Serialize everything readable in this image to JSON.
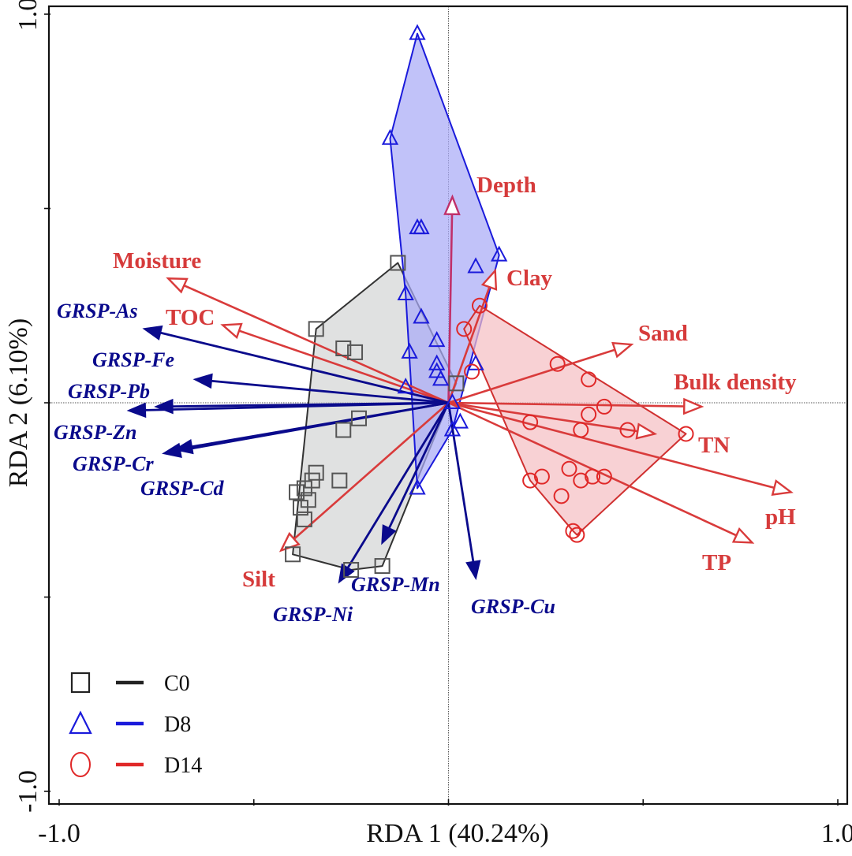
{
  "chart_data": {
    "type": "scatter",
    "subtype": "RDA biplot",
    "title": "",
    "xlabel": "RDA 1 (40.24%)",
    "ylabel": "RDA 2 (6.10%)",
    "xlim": [
      -1.0,
      1.0
    ],
    "ylim": [
      -1.0,
      1.0
    ],
    "x_tick_labels": [
      {
        "value": -1.0,
        "label": "-1.0"
      },
      {
        "value": -0.5,
        "label": ""
      },
      {
        "value": 0.0,
        "label": ""
      },
      {
        "value": 0.5,
        "label": ""
      },
      {
        "value": 1.0,
        "label": "1.0"
      }
    ],
    "y_tick_labels": [
      {
        "value": 1.0,
        "label": "1.0"
      },
      {
        "value": 0.5,
        "label": ""
      },
      {
        "value": 0.0,
        "label": ""
      },
      {
        "value": -0.5,
        "label": ""
      },
      {
        "value": -1.0,
        "label": "-1.0"
      }
    ],
    "reference_lines": {
      "x": 0,
      "y": 0,
      "style": "dotted"
    },
    "legend": {
      "position": "bottom-left",
      "entries": [
        {
          "name": "C0",
          "marker": "square",
          "color": "#222222"
        },
        {
          "name": "D8",
          "marker": "triangle",
          "color": "#1a1adb"
        },
        {
          "name": "D14",
          "marker": "circle",
          "color": "#e02828"
        }
      ]
    },
    "groups": [
      {
        "name": "C0",
        "marker": "square",
        "stroke": "#555555",
        "fill": "#d4d5d6",
        "hull_stroke": "#333333",
        "points": [
          [
            -0.13,
            0.36
          ],
          [
            -0.34,
            0.19
          ],
          [
            -0.27,
            0.14
          ],
          [
            -0.24,
            0.13
          ],
          [
            0.02,
            0.05
          ],
          [
            -0.23,
            -0.04
          ],
          [
            -0.27,
            -0.07
          ],
          [
            -0.34,
            -0.18
          ],
          [
            -0.28,
            -0.2
          ],
          [
            -0.35,
            -0.2
          ],
          [
            -0.37,
            -0.22
          ],
          [
            -0.39,
            -0.23
          ],
          [
            -0.36,
            -0.25
          ],
          [
            -0.37,
            -0.3
          ],
          [
            -0.38,
            -0.27
          ],
          [
            -0.4,
            -0.39
          ],
          [
            -0.25,
            -0.43
          ],
          [
            -0.17,
            -0.42
          ]
        ],
        "hull": [
          [
            -0.13,
            0.36
          ],
          [
            -0.34,
            0.19
          ],
          [
            -0.4,
            -0.39
          ],
          [
            -0.25,
            -0.43
          ],
          [
            -0.17,
            -0.42
          ],
          [
            0.02,
            0.05
          ]
        ]
      },
      {
        "name": "D8",
        "marker": "triangle",
        "stroke": "#1a1adb",
        "fill": "#a9aaf6",
        "hull_stroke": "#1a1adb",
        "points": [
          [
            -0.08,
            0.95
          ],
          [
            -0.15,
            0.68
          ],
          [
            -0.08,
            0.45
          ],
          [
            -0.07,
            0.45
          ],
          [
            0.13,
            0.38
          ],
          [
            0.07,
            0.35
          ],
          [
            -0.11,
            0.28
          ],
          [
            -0.07,
            0.22
          ],
          [
            -0.03,
            0.16
          ],
          [
            -0.1,
            0.13
          ],
          [
            -0.03,
            0.1
          ],
          [
            -0.03,
            0.08
          ],
          [
            -0.02,
            0.06
          ],
          [
            0.07,
            0.1
          ],
          [
            -0.11,
            0.04
          ],
          [
            0.01,
            0.0
          ],
          [
            0.03,
            -0.05
          ],
          [
            0.01,
            -0.07
          ],
          [
            -0.08,
            -0.22
          ]
        ],
        "hull": [
          [
            -0.08,
            0.95
          ],
          [
            0.13,
            0.38
          ],
          [
            0.01,
            -0.07
          ],
          [
            -0.08,
            -0.22
          ],
          [
            -0.11,
            0.28
          ],
          [
            -0.15,
            0.68
          ]
        ]
      },
      {
        "name": "D14",
        "marker": "circle",
        "stroke": "#e02828",
        "fill": "#f5bfc4",
        "hull_stroke": "#d03030",
        "points": [
          [
            0.08,
            0.25
          ],
          [
            0.04,
            0.19
          ],
          [
            0.06,
            0.08
          ],
          [
            0.28,
            0.1
          ],
          [
            0.36,
            0.06
          ],
          [
            0.4,
            -0.01
          ],
          [
            0.36,
            -0.03
          ],
          [
            0.34,
            -0.07
          ],
          [
            0.21,
            -0.05
          ],
          [
            0.46,
            -0.07
          ],
          [
            0.61,
            -0.08
          ],
          [
            0.31,
            -0.17
          ],
          [
            0.24,
            -0.19
          ],
          [
            0.21,
            -0.2
          ],
          [
            0.37,
            -0.19
          ],
          [
            0.4,
            -0.19
          ],
          [
            0.34,
            -0.2
          ],
          [
            0.29,
            -0.24
          ],
          [
            0.32,
            -0.33
          ],
          [
            0.33,
            -0.34
          ]
        ],
        "hull": [
          [
            0.08,
            0.25
          ],
          [
            0.61,
            -0.08
          ],
          [
            0.33,
            -0.34
          ],
          [
            0.32,
            -0.33
          ],
          [
            0.21,
            -0.2
          ],
          [
            0.04,
            0.19
          ]
        ]
      }
    ],
    "vectors": [
      {
        "name": "Depth",
        "kind": "environment",
        "x": 0.01,
        "y": 0.53
      },
      {
        "name": "Clay",
        "kind": "environment",
        "x": 0.12,
        "y": 0.34
      },
      {
        "name": "Moisture",
        "kind": "environment",
        "x": -0.72,
        "y": 0.32
      },
      {
        "name": "TOC",
        "kind": "environment",
        "x": -0.58,
        "y": 0.2
      },
      {
        "name": "Sand",
        "kind": "environment",
        "x": 0.47,
        "y": 0.15
      },
      {
        "name": "Bulk density",
        "kind": "environment",
        "x": 0.65,
        "y": -0.01
      },
      {
        "name": "TN",
        "kind": "environment",
        "x": 0.53,
        "y": -0.08
      },
      {
        "name": "pH",
        "kind": "environment",
        "x": 0.88,
        "y": -0.23
      },
      {
        "name": "TP",
        "kind": "environment",
        "x": 0.78,
        "y": -0.36
      },
      {
        "name": "Silt",
        "kind": "environment",
        "x": -0.43,
        "y": -0.38
      },
      {
        "name": "GRSP-As",
        "kind": "response",
        "x": -0.78,
        "y": 0.19
      },
      {
        "name": "GRSP-Fe",
        "kind": "response",
        "x": -0.65,
        "y": 0.06
      },
      {
        "name": "GRSP-Pb",
        "kind": "response",
        "x": -0.75,
        "y": -0.01
      },
      {
        "name": "GRSP-Zn",
        "kind": "response",
        "x": -0.82,
        "y": -0.02
      },
      {
        "name": "GRSP-Cr",
        "kind": "response",
        "x": -0.7,
        "y": -0.12
      },
      {
        "name": "GRSP-Cd",
        "kind": "response",
        "x": -0.73,
        "y": -0.13
      },
      {
        "name": "GRSP-Mn",
        "kind": "response",
        "x": -0.17,
        "y": -0.36
      },
      {
        "name": "GRSP-Ni",
        "kind": "response",
        "x": -0.28,
        "y": -0.46
      },
      {
        "name": "GRSP-Cu",
        "kind": "response",
        "x": 0.07,
        "y": -0.45
      }
    ],
    "colors": {
      "environment_vector": "#d93b3b",
      "response_vector": "#0a0a8c",
      "depth_vector": "#c0306a"
    }
  }
}
